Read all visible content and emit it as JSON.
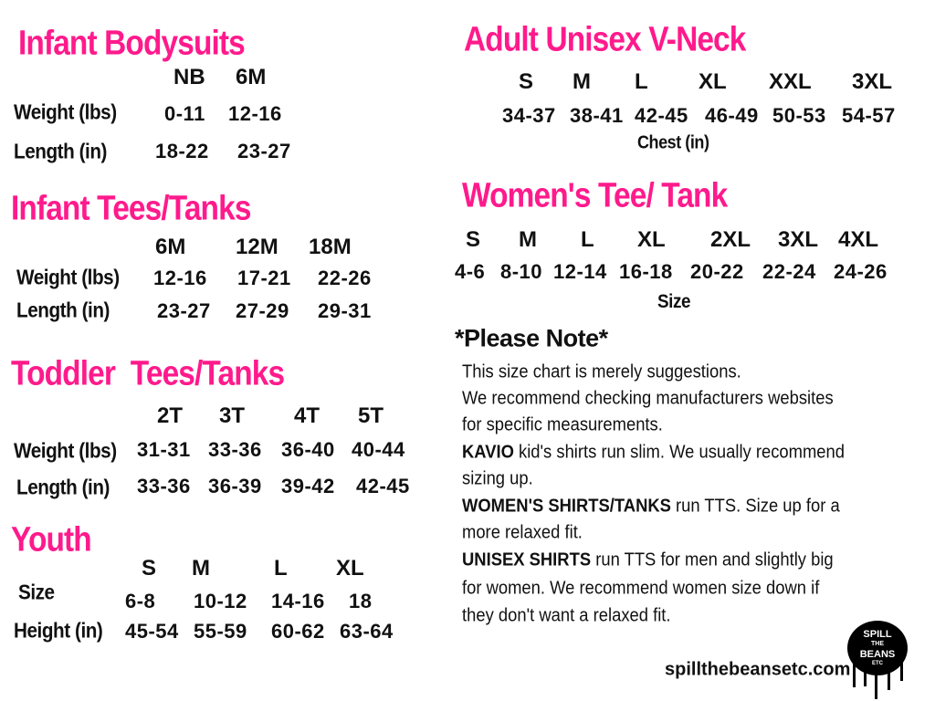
{
  "colors": {
    "heading": "#ff1a8c",
    "text": "#111111"
  },
  "infant_bodysuits": {
    "title": "Infant Bodysuits",
    "sizes": [
      "NB",
      "6M"
    ],
    "rows": [
      {
        "label": "Weight (lbs)",
        "values": [
          "0-11",
          "12-16"
        ]
      },
      {
        "label": "Length (in)",
        "values": [
          "18-22",
          "23-27"
        ]
      }
    ]
  },
  "infant_tees": {
    "title": "Infant Tees/Tanks",
    "sizes": [
      "6M",
      "12M",
      "18M"
    ],
    "rows": [
      {
        "label": "Weight (lbs)",
        "values": [
          "12-16",
          "17-21",
          "22-26"
        ]
      },
      {
        "label": "Length (in)",
        "values": [
          "23-27",
          "27-29",
          "29-31"
        ]
      }
    ]
  },
  "toddler": {
    "title": "Toddler  Tees/Tanks",
    "sizes": [
      "2T",
      "3T",
      "4T",
      "5T"
    ],
    "rows": [
      {
        "label": "Weight (lbs)",
        "values": [
          "31-31",
          "33-36",
          "36-40",
          "40-44"
        ]
      },
      {
        "label": "Length (in)",
        "values": [
          "33-36",
          "36-39",
          "39-42",
          "42-45"
        ]
      }
    ]
  },
  "youth": {
    "title": "Youth",
    "sizes": [
      "S",
      "M",
      "L",
      "XL"
    ],
    "rows": [
      {
        "label": "Size",
        "values": [
          "6-8",
          "10-12",
          "14-16",
          "18"
        ]
      },
      {
        "label": "Height (in)",
        "values": [
          "45-54",
          "55-59",
          "60-62",
          "63-64"
        ]
      }
    ]
  },
  "adult_unisex": {
    "title": "Adult Unisex V-Neck",
    "sizes": [
      "S",
      "M",
      "L",
      "XL",
      "XXL",
      "3XL"
    ],
    "values": [
      "34-37",
      "38-41",
      "42-45",
      "46-49",
      "50-53",
      "54-57"
    ],
    "unit": "Chest (in)"
  },
  "womens": {
    "title": "Women's Tee/ Tank",
    "sizes": [
      "S",
      "M",
      "L",
      "XL",
      "2XL",
      "3XL",
      "4XL"
    ],
    "values": [
      "4-6",
      "8-10",
      "12-14",
      "16-18",
      "20-22",
      "22-24",
      "24-26"
    ],
    "unit": "Size"
  },
  "notes": {
    "title": "*Please Note*",
    "lines": [
      {
        "bold": "",
        "text": "This size chart is merely suggestions."
      },
      {
        "bold": "",
        "text": "We recommend checking manufacturers websites"
      },
      {
        "bold": "",
        "text": "for specific measurements."
      },
      {
        "bold": "KAVIO",
        "text": " kid's shirts run slim. We usually recommend"
      },
      {
        "bold": "",
        "text": "sizing up."
      },
      {
        "bold": "WOMEN'S SHIRTS/TANKS",
        "text": " run TTS. Size up for a"
      },
      {
        "bold": "",
        "text": "more relaxed fit."
      },
      {
        "bold": "UNISEX SHIRTS",
        "text": " run TTS for men and slightly big"
      },
      {
        "bold": "",
        "text": "for women. We recommend women size down if"
      },
      {
        "bold": "",
        "text": "they don't want a relaxed fit."
      }
    ]
  },
  "footer": {
    "website": "spillthebeansetc.com",
    "logo_text": [
      "SPILL",
      "THE",
      "BEANS",
      "ETC"
    ]
  }
}
